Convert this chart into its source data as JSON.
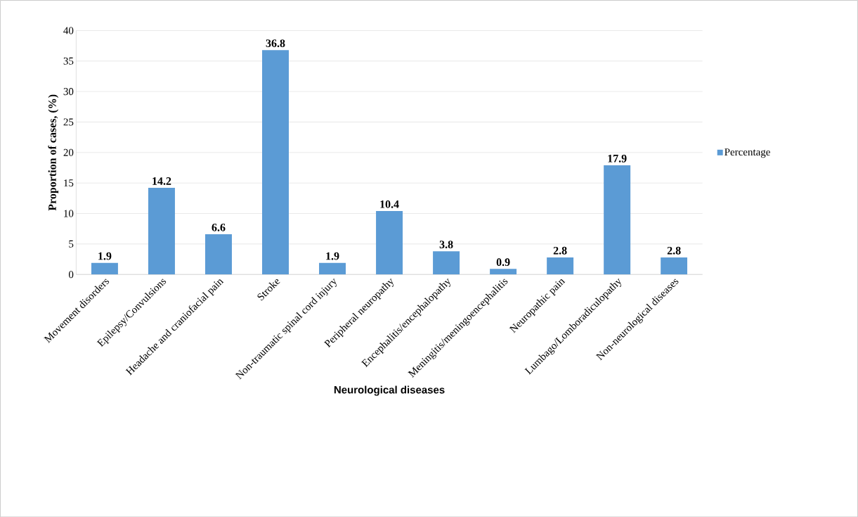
{
  "chart_data": {
    "type": "bar",
    "xlabel": "Neurological diseases",
    "ylabel": "Proportion of cases, (%)",
    "categories": [
      "Movement disorders",
      "Epilepsy/Convulsions",
      "Headache and craniofacial pain",
      "Stroke",
      "Non-traumatic spinal cord injury",
      "Peripheral neuropathy",
      "Encephalitis/encephalopathy",
      "Meningitis/meningoencephalitis",
      "Neuropathic pain",
      "Lumbago/Lomboradiculopathy",
      "Non-neurological diseases"
    ],
    "series": [
      {
        "name": "Percentage",
        "color": "#5b9bd5",
        "values": [
          1.9,
          14.2,
          6.6,
          36.8,
          1.9,
          10.4,
          3.8,
          0.9,
          2.8,
          17.9,
          2.8
        ]
      }
    ],
    "ylim": [
      0,
      40
    ],
    "yticks": [
      0,
      5,
      10,
      15,
      20,
      25,
      30,
      35,
      40
    ],
    "grid": "y",
    "legend": "right",
    "data_labels": true
  }
}
